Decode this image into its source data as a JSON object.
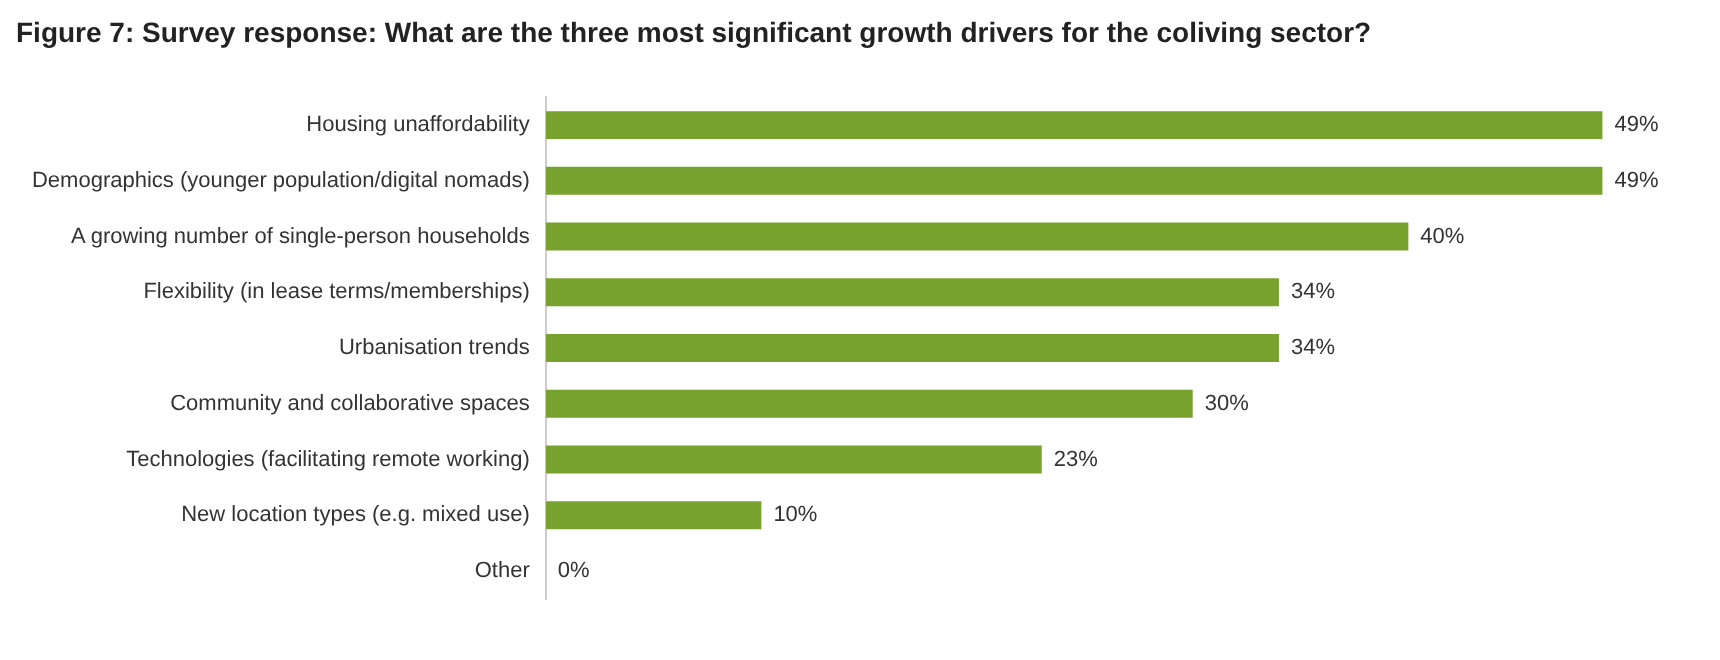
{
  "chart_data": {
    "type": "bar",
    "orientation": "horizontal",
    "title": "Figure 7: Survey response: What are the three most significant growth drivers for the coliving sector?",
    "categories": [
      "Housing unaffordability",
      "Demographics (younger population/digital nomads)",
      "A growing number of single-person households",
      "Flexibility (in lease terms/memberships)",
      "Urbanisation trends",
      "Community and collaborative spaces",
      "Technologies (facilitating remote working)",
      "New location types (e.g. mixed use)",
      "Other"
    ],
    "values": [
      49,
      49,
      40,
      34,
      34,
      30,
      23,
      10,
      0
    ],
    "value_labels": [
      "49%",
      "49%",
      "40%",
      "34%",
      "34%",
      "30%",
      "23%",
      "10%",
      "0%"
    ],
    "color": "#77a22e",
    "grid": false,
    "legend": false
  }
}
